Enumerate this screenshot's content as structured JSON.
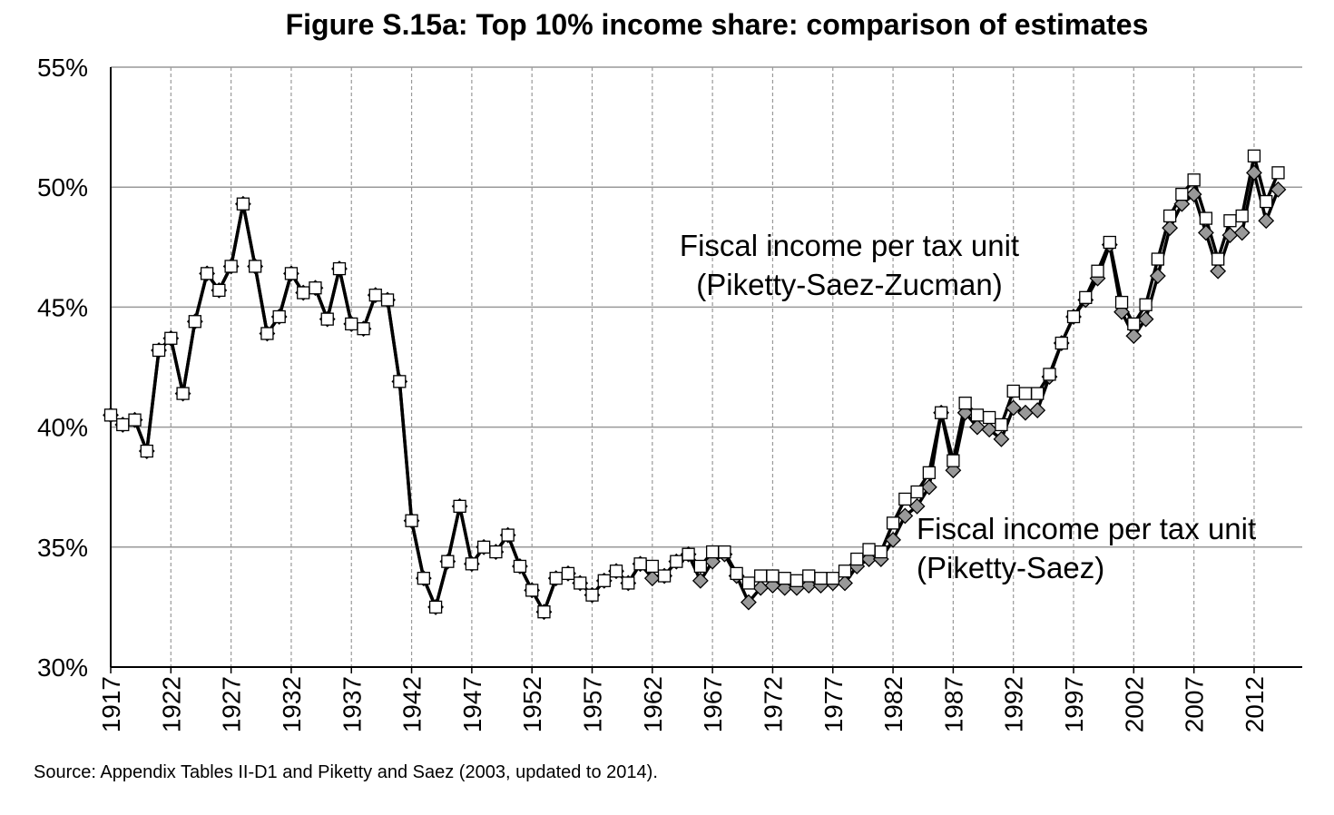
{
  "chart_data": {
    "type": "line",
    "title": "Figure S.15a: Top 10% income share: comparison of estimates",
    "source": "Source: Appendix Tables II-D1 and Piketty and Saez (2003, updated to 2014).",
    "x": [
      1917,
      1918,
      1919,
      1920,
      1921,
      1922,
      1923,
      1924,
      1925,
      1926,
      1927,
      1928,
      1929,
      1930,
      1931,
      1932,
      1933,
      1934,
      1935,
      1936,
      1937,
      1938,
      1939,
      1940,
      1941,
      1942,
      1943,
      1944,
      1945,
      1946,
      1947,
      1948,
      1949,
      1950,
      1951,
      1952,
      1953,
      1954,
      1955,
      1956,
      1957,
      1958,
      1959,
      1960,
      1961,
      1962,
      1963,
      1964,
      1965,
      1966,
      1967,
      1968,
      1969,
      1970,
      1971,
      1972,
      1973,
      1974,
      1975,
      1976,
      1977,
      1978,
      1979,
      1980,
      1981,
      1982,
      1983,
      1984,
      1985,
      1986,
      1987,
      1988,
      1989,
      1990,
      1991,
      1992,
      1993,
      1994,
      1995,
      1996,
      1997,
      1998,
      1999,
      2000,
      2001,
      2002,
      2003,
      2004,
      2005,
      2006,
      2007,
      2008,
      2009,
      2010,
      2011,
      2012,
      2013,
      2014
    ],
    "series": [
      {
        "name": [
          "Fiscal income per tax unit",
          "(Piketty-Saez)"
        ],
        "color": "#999999",
        "marker": "diamond",
        "values": [
          40.5,
          40.1,
          40.3,
          39.0,
          43.2,
          43.7,
          41.4,
          44.4,
          46.4,
          45.7,
          46.7,
          49.3,
          46.7,
          43.9,
          44.6,
          46.4,
          45.6,
          45.8,
          44.5,
          46.6,
          44.3,
          44.1,
          45.5,
          45.3,
          41.9,
          36.1,
          33.7,
          32.5,
          34.4,
          36.7,
          34.3,
          35.0,
          34.8,
          35.5,
          34.2,
          33.2,
          32.3,
          33.7,
          33.9,
          33.5,
          33.0,
          33.6,
          34.0,
          33.5,
          34.3,
          33.7,
          33.8,
          34.4,
          34.7,
          33.6,
          34.4,
          34.7,
          33.8,
          32.7,
          33.3,
          33.4,
          33.3,
          33.3,
          33.4,
          33.4,
          33.5,
          33.5,
          34.2,
          34.5,
          34.5,
          35.3,
          36.3,
          36.7,
          37.5,
          40.6,
          38.2,
          40.6,
          40.0,
          39.9,
          39.5,
          40.8,
          40.6,
          40.7,
          42.1,
          43.5,
          44.6,
          45.3,
          46.2,
          47.6,
          44.8,
          43.8,
          44.5,
          46.3,
          48.3,
          49.3,
          49.7,
          48.1,
          46.5,
          48.0,
          48.1,
          50.6,
          48.6,
          49.9
        ]
      },
      {
        "name": [
          "Fiscal income per tax unit",
          "(Piketty-Saez-Zucman)"
        ],
        "color": "#ffffff",
        "marker": "square",
        "values": [
          40.5,
          40.1,
          40.3,
          39.0,
          43.2,
          43.7,
          41.4,
          44.4,
          46.4,
          45.7,
          46.7,
          49.3,
          46.7,
          43.9,
          44.6,
          46.4,
          45.6,
          45.8,
          44.5,
          46.6,
          44.3,
          44.1,
          45.5,
          45.3,
          41.9,
          36.1,
          33.7,
          32.5,
          34.4,
          36.7,
          34.3,
          35.0,
          34.8,
          35.5,
          34.2,
          33.2,
          32.3,
          33.7,
          33.9,
          33.5,
          33.0,
          33.6,
          34.0,
          33.5,
          34.3,
          34.2,
          33.8,
          34.4,
          34.7,
          34.2,
          34.8,
          34.8,
          33.9,
          33.5,
          33.8,
          33.8,
          33.7,
          33.6,
          33.8,
          33.7,
          33.7,
          34.0,
          34.5,
          34.9,
          34.8,
          36.0,
          37.0,
          37.3,
          38.1,
          40.6,
          38.6,
          41.0,
          40.5,
          40.4,
          40.1,
          41.5,
          41.4,
          41.4,
          42.2,
          43.5,
          44.6,
          45.4,
          46.5,
          47.7,
          45.2,
          44.3,
          45.1,
          47.0,
          48.8,
          49.7,
          50.3,
          48.7,
          47.0,
          48.6,
          48.8,
          51.3,
          49.4,
          50.6
        ]
      }
    ],
    "line_color": "#000000",
    "xlim": [
      1917,
      2016
    ],
    "xticks": [
      1917,
      1922,
      1927,
      1932,
      1937,
      1942,
      1947,
      1952,
      1957,
      1962,
      1967,
      1972,
      1977,
      1982,
      1987,
      1992,
      1997,
      2002,
      2007,
      2012
    ],
    "ylim": [
      30,
      55
    ],
    "yticks": [
      {
        "value": 30,
        "label": "30%"
      },
      {
        "value": 35,
        "label": "35%"
      },
      {
        "value": 40,
        "label": "40%"
      },
      {
        "value": 45,
        "label": "45%"
      },
      {
        "value": 50,
        "label": "50%"
      },
      {
        "value": 55,
        "label": "55%"
      }
    ],
    "grid": true
  }
}
